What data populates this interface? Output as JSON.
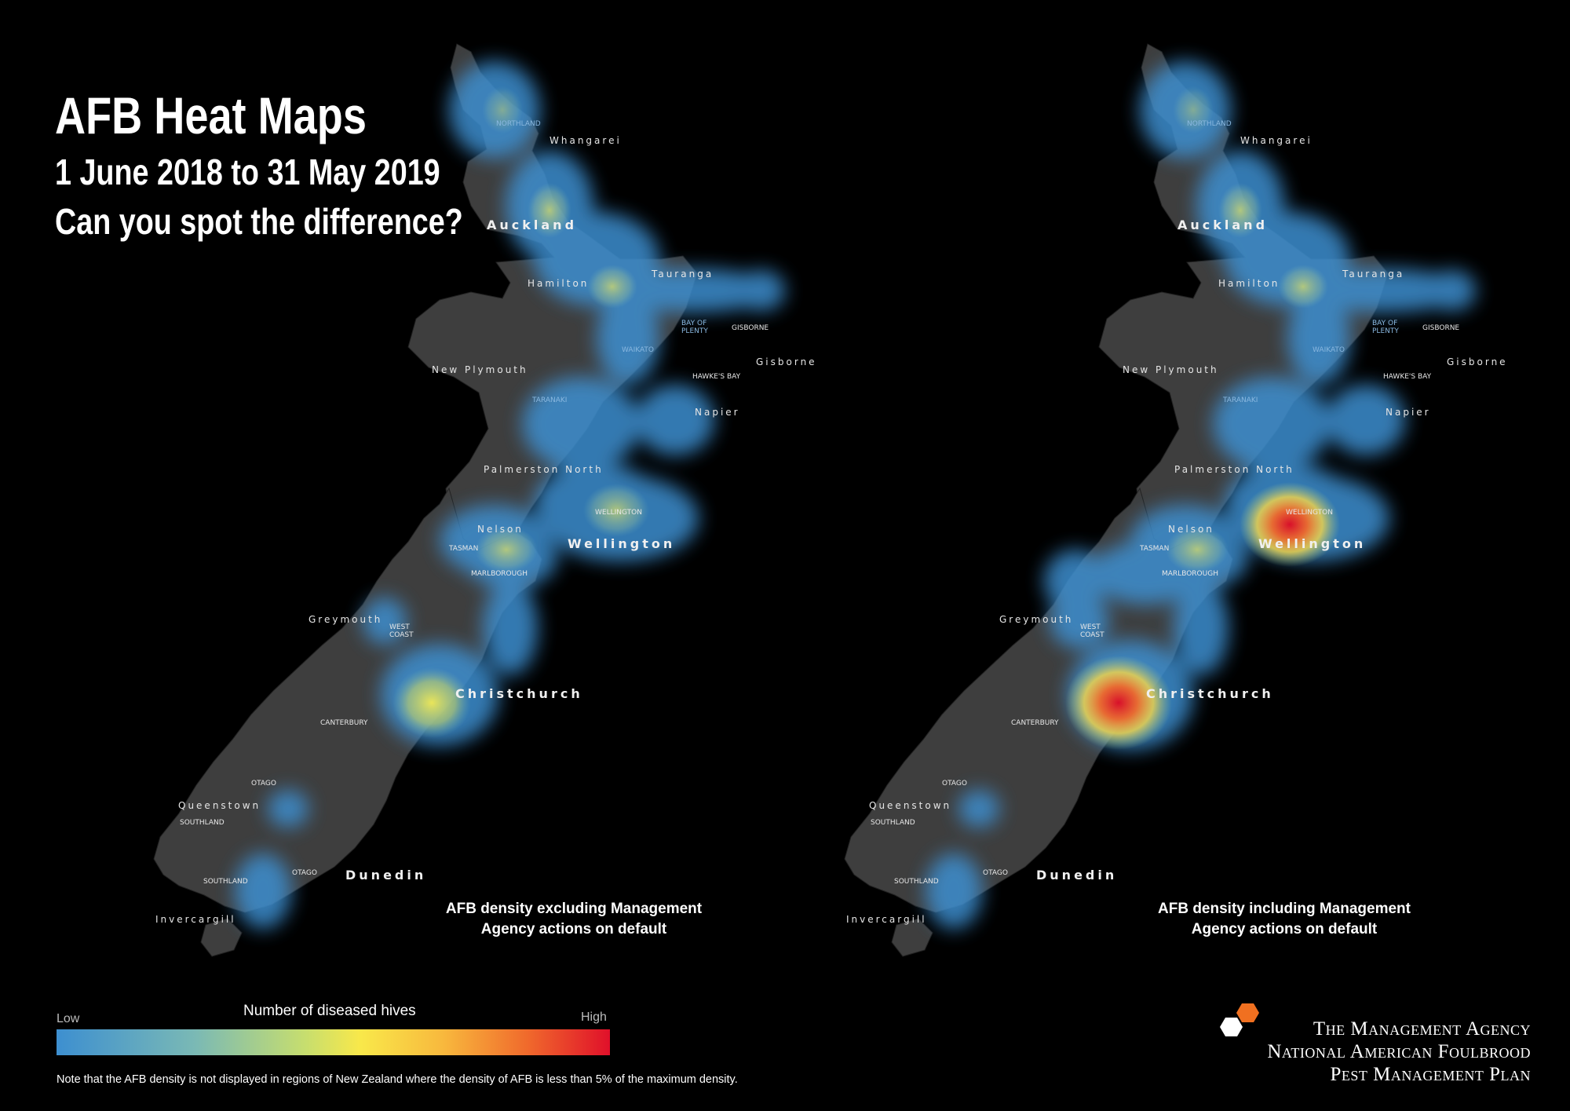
{
  "title": {
    "line1": "AFB Heat Maps",
    "line2": "1 June 2018 to 31 May 2019",
    "line3": "Can you spot the difference?"
  },
  "maps": [
    {
      "caption_line1": "AFB density excluding Management",
      "caption_line2": "Agency actions on default"
    },
    {
      "caption_line1": "AFB density including Management",
      "caption_line2": "Agency actions on default"
    }
  ],
  "labels": {
    "whangarei": "Whangarei",
    "auckland": "Auckland",
    "hamilton": "Hamilton",
    "tauranga": "Tauranga",
    "gisborne_city": "Gisborne",
    "new_plymouth": "New Plymouth",
    "napier": "Napier",
    "palmerston_north": "Palmerston North",
    "nelson": "Nelson",
    "wellington_city": "Wellington",
    "greymouth": "Greymouth",
    "christchurch": "Christchurch",
    "queenstown": "Queenstown",
    "dunedin": "Dunedin",
    "invercargill": "Invercargill",
    "northland": "NORTHLAND",
    "bay_of_plenty_1": "BAY OF",
    "bay_of_plenty_2": "PLENTY",
    "gisborne_region": "GISBORNE",
    "waikato": "WAIKATO",
    "hawkes_bay": "HAWKE'S BAY",
    "taranaki": "TARANAKI",
    "wellington_region": "WELLINGTON",
    "tasman": "TASMAN",
    "marlborough": "MARLBOROUGH",
    "west_coast_1": "WEST",
    "west_coast_2": "COAST",
    "canterbury": "CANTERBURY",
    "otago": "OTAGO",
    "southland": "SOUTHLAND"
  },
  "legend": {
    "title": "Number of diseased hives",
    "low": "Low",
    "high": "High",
    "colors": [
      "#3d8fd0",
      "#7ab9b5",
      "#c7de6e",
      "#f9e84a",
      "#f8b83d",
      "#f06a2c",
      "#e0102a"
    ]
  },
  "note": "Note that the AFB density is not displayed in regions of New Zealand where the density of AFB is less than 5% of the maximum density.",
  "logo": {
    "line1": "The Management Agency",
    "line2": "National American Foulbrood",
    "line3": "Pest Management Plan"
  },
  "colors": {
    "background": "#000000",
    "land": "#3e3e3e",
    "heat_low": "#3d8fd0",
    "heat_mid": "#f9e84a",
    "heat_high": "#e0102a"
  }
}
